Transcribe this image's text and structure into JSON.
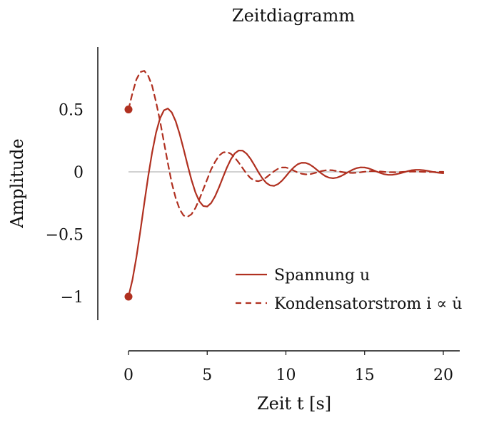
{
  "chart_data": {
    "type": "line",
    "title": "Zeitdiagramm",
    "xlabel": "Zeit t [s]",
    "ylabel": "Amplitude",
    "xlim": [
      0,
      20
    ],
    "ylim": [
      -1,
      0.8
    ],
    "x_ticks": [
      0,
      5,
      10,
      15,
      20
    ],
    "x_tick_labels": [
      "0",
      "5",
      "10",
      "15",
      "20"
    ],
    "y_ticks": [
      -1,
      -0.5,
      0,
      0.5
    ],
    "y_tick_labels": [
      "−1",
      "−0.5",
      "0",
      "0.5"
    ],
    "legend_position": "bottom-right",
    "grid": false,
    "zero_line": true,
    "colors": {
      "series": "#b03020",
      "zero_line": "#b8b8b8",
      "axis": "#111111"
    },
    "series": [
      {
        "name": "Spannung u",
        "style": "solid",
        "x": [
          0,
          0.25,
          0.5,
          0.75,
          1,
          1.25,
          1.5,
          1.75,
          2,
          2.25,
          2.5,
          2.75,
          3,
          3.25,
          3.5,
          3.75,
          4,
          4.25,
          4.5,
          4.75,
          5,
          5.25,
          5.5,
          5.75,
          6,
          6.25,
          6.5,
          6.75,
          7,
          7.25,
          7.5,
          7.75,
          8,
          8.25,
          8.5,
          8.75,
          9,
          9.25,
          9.5,
          9.75,
          10,
          10.25,
          10.5,
          10.75,
          11,
          11.25,
          11.5,
          11.75,
          12,
          12.25,
          12.5,
          12.75,
          13,
          13.25,
          13.5,
          13.75,
          14,
          14.25,
          14.5,
          14.75,
          15,
          15.25,
          15.5,
          15.75,
          16,
          16.25,
          16.5,
          16.75,
          17,
          17.25,
          17.5,
          17.75,
          18,
          18.25,
          18.5,
          18.75,
          19,
          19.25,
          19.5,
          19.75,
          20
        ],
        "y": [
          -1,
          -0.866,
          -0.686,
          -0.476,
          -0.254,
          -0.038,
          0.155,
          0.314,
          0.428,
          0.493,
          0.508,
          0.476,
          0.405,
          0.303,
          0.183,
          0.056,
          -0.064,
          -0.164,
          -0.236,
          -0.274,
          -0.278,
          -0.25,
          -0.196,
          -0.124,
          -0.044,
          0.034,
          0.1,
          0.148,
          0.171,
          0.17,
          0.146,
          0.105,
          0.053,
          -0.002,
          -0.051,
          -0.088,
          -0.109,
          -0.112,
          -0.098,
          -0.071,
          -0.035,
          0.003,
          0.036,
          0.061,
          0.073,
          0.072,
          0.06,
          0.039,
          0.013,
          -0.012,
          -0.034,
          -0.047,
          -0.051,
          -0.046,
          -0.034,
          -0.017,
          0.001,
          0.018,
          0.03,
          0.036,
          0.035,
          0.028,
          0.016,
          0.003,
          -0.009,
          -0.019,
          -0.024,
          -0.024,
          -0.019,
          -0.012,
          -0.003,
          0.006,
          0.013,
          0.016,
          0.016,
          0.013,
          0.008,
          0.002,
          -0.004,
          -0.008,
          -0.011
        ]
      },
      {
        "name": "Kondensatorstrom i ∝ u̇",
        "style": "dashed",
        "x": [
          0,
          0.25,
          0.5,
          0.75,
          1,
          1.25,
          1.5,
          1.75,
          2,
          2.25,
          2.5,
          2.75,
          3,
          3.25,
          3.5,
          3.75,
          4,
          4.25,
          4.5,
          4.75,
          5,
          5.25,
          5.5,
          5.75,
          6,
          6.25,
          6.5,
          6.75,
          7,
          7.25,
          7.5,
          7.75,
          8,
          8.25,
          8.5,
          8.75,
          9,
          9.25,
          9.5,
          9.75,
          10,
          10.25,
          10.5,
          10.75,
          11,
          11.25,
          11.5,
          11.75,
          12,
          12.25,
          12.5,
          12.75,
          13,
          13.25,
          13.5,
          13.75,
          14,
          14.25,
          14.5,
          14.75,
          15,
          15.25,
          15.5,
          15.75,
          16,
          16.25,
          16.5,
          16.75,
          17,
          17.25,
          17.5,
          17.75,
          18,
          18.25,
          18.5,
          18.75,
          19,
          19.25,
          19.5,
          19.75,
          20
        ],
        "y": [
          0.5,
          0.63,
          0.74,
          0.8,
          0.81,
          0.77,
          0.69,
          0.56,
          0.41,
          0.24,
          0.07,
          -0.09,
          -0.21,
          -0.3,
          -0.35,
          -0.36,
          -0.34,
          -0.29,
          -0.22,
          -0.14,
          -0.06,
          0.02,
          0.08,
          0.13,
          0.155,
          0.16,
          0.145,
          0.115,
          0.075,
          0.03,
          -0.015,
          -0.05,
          -0.07,
          -0.075,
          -0.065,
          -0.045,
          -0.02,
          0.005,
          0.025,
          0.035,
          0.035,
          0.025,
          0.01,
          -0.005,
          -0.015,
          -0.02,
          -0.02,
          -0.012,
          -0.003,
          0.006,
          0.012,
          0.014,
          0.012,
          0.006,
          0,
          -0.005,
          -0.008,
          -0.009,
          -0.007,
          -0.003,
          0.001,
          0.004,
          0.006,
          0.005,
          0.003,
          0,
          -0.002,
          -0.003,
          -0.003,
          -0.002,
          0,
          0.001,
          0.002,
          0.002,
          0.001,
          0,
          -0.001,
          -0.001,
          -0.001,
          0,
          0
        ]
      }
    ],
    "markers": [
      {
        "x": 0,
        "y": 0.5
      },
      {
        "x": 0,
        "y": -1
      }
    ],
    "legend": [
      {
        "label": "Spannung u",
        "style": "solid"
      },
      {
        "label": "Kondensatorstrom i ∝ u̇",
        "style": "dashed"
      }
    ]
  }
}
